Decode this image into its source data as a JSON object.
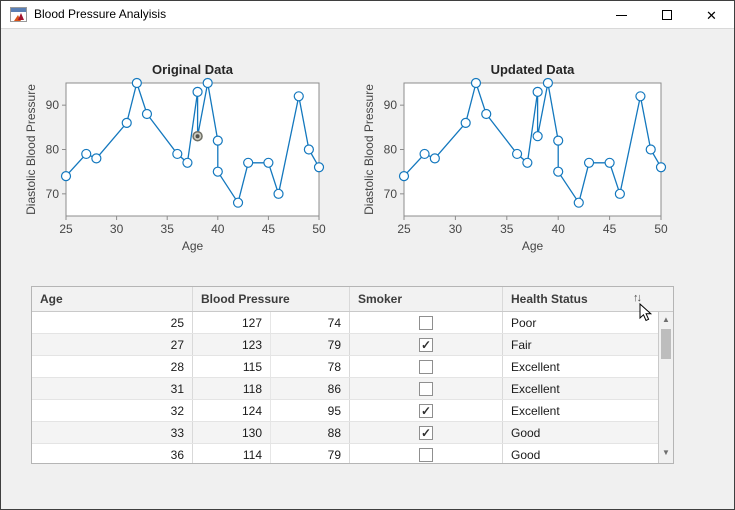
{
  "window": {
    "title": "Blood Pressure Analyisis",
    "controls": [
      {
        "name": "minimize"
      },
      {
        "name": "maximize"
      },
      {
        "name": "close"
      }
    ]
  },
  "colors": {
    "line_blue": "#1478be",
    "plot_bg": "#ffffff",
    "axis_line": "#8c8c8c",
    "tick_label": "#464646",
    "chart_title": "#262626",
    "selected_marker_fill": "#ccccc2",
    "selected_marker_stroke": "#6e6e64",
    "selected_marker_dot": "#52524c"
  },
  "chart_data": [
    {
      "type": "line",
      "title": "Original Data",
      "xlabel": "Age",
      "ylabel": "Diastolic Blood Pressure",
      "xlim": [
        25,
        50
      ],
      "ylim": [
        65,
        95
      ],
      "xticks": [
        25,
        30,
        35,
        40,
        45,
        50
      ],
      "yticks": [
        70,
        80,
        90
      ],
      "grid": false,
      "legend": null,
      "marker": "circle",
      "x": [
        25,
        27,
        28,
        31,
        32,
        33,
        36,
        37,
        38,
        38,
        39,
        40,
        40,
        42,
        43,
        45,
        46,
        48,
        49,
        50
      ],
      "y": [
        74,
        79,
        78,
        86,
        95,
        88,
        79,
        77,
        93,
        83,
        95,
        82,
        75,
        68,
        77,
        77,
        70,
        92,
        80,
        76
      ],
      "selected_point_index": 9
    },
    {
      "type": "line",
      "title": "Updated Data",
      "xlabel": "Age",
      "ylabel": "Diastolic Blood Pressure",
      "xlim": [
        25,
        50
      ],
      "ylim": [
        65,
        95
      ],
      "xticks": [
        25,
        30,
        35,
        40,
        45,
        50
      ],
      "yticks": [
        70,
        80,
        90
      ],
      "grid": false,
      "legend": null,
      "marker": "circle",
      "x": [
        25,
        27,
        28,
        31,
        32,
        33,
        36,
        37,
        38,
        38,
        39,
        40,
        40,
        42,
        43,
        45,
        46,
        48,
        49,
        50
      ],
      "y": [
        74,
        79,
        78,
        86,
        95,
        88,
        79,
        77,
        93,
        83,
        95,
        82,
        75,
        68,
        77,
        77,
        70,
        92,
        80,
        76
      ],
      "selected_point_index": null
    }
  ],
  "table": {
    "columns": [
      "Age",
      "Blood Pressure",
      "Smoker",
      "Health Status"
    ],
    "sort_icon": "↑↓",
    "scroll_up_icon": "▲",
    "scroll_down_icon": "▼",
    "check_icon": "✓",
    "rows": [
      {
        "age": "25",
        "systolic": "127",
        "diastolic": "74",
        "smoker": false,
        "status": "Poor"
      },
      {
        "age": "27",
        "systolic": "123",
        "diastolic": "79",
        "smoker": true,
        "status": "Fair"
      },
      {
        "age": "28",
        "systolic": "115",
        "diastolic": "78",
        "smoker": false,
        "status": "Excellent"
      },
      {
        "age": "31",
        "systolic": "118",
        "diastolic": "86",
        "smoker": false,
        "status": "Excellent"
      },
      {
        "age": "32",
        "systolic": "124",
        "diastolic": "95",
        "smoker": true,
        "status": "Excellent"
      },
      {
        "age": "33",
        "systolic": "130",
        "diastolic": "88",
        "smoker": true,
        "status": "Good"
      },
      {
        "age": "36",
        "systolic": "114",
        "diastolic": "79",
        "smoker": false,
        "status": "Good"
      }
    ]
  }
}
